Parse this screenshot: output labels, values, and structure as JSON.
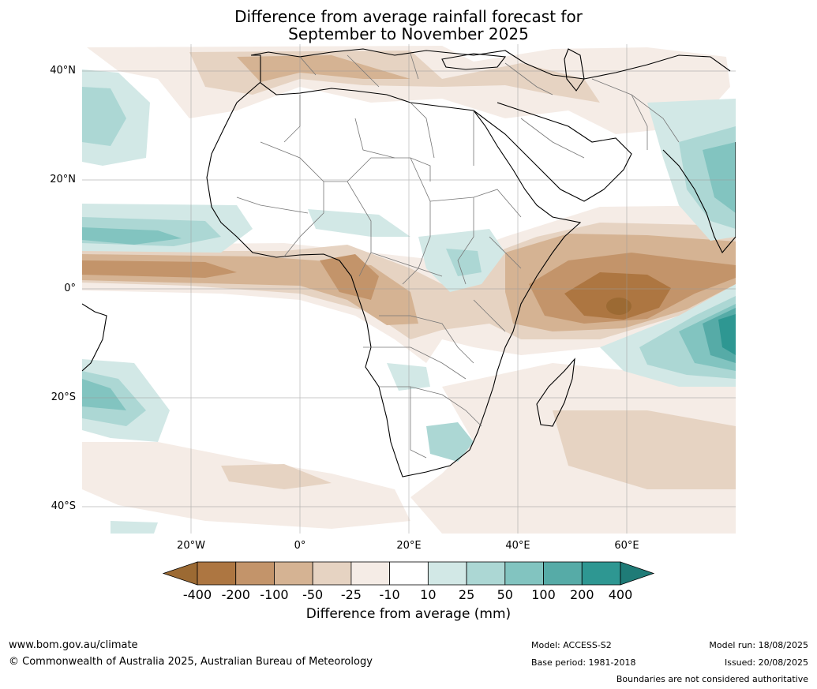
{
  "title_line1": "Difference from average rainfall forecast for",
  "title_line2": "September to November 2025",
  "lat_labels": [
    "40°N",
    "20°N",
    "0°",
    "20°S",
    "40°S"
  ],
  "lon_labels": [
    "20°W",
    "0°",
    "20°E",
    "40°E",
    "60°E"
  ],
  "colorbar": {
    "ticks": [
      "-400",
      "-200",
      "-100",
      "-50",
      "-25",
      "-10",
      "10",
      "25",
      "50",
      "100",
      "200",
      "400"
    ],
    "colors": [
      "#9c6a33",
      "#ad7641",
      "#c3946a",
      "#d5b393",
      "#e6d3c2",
      "#f5ece6",
      "#ffffff",
      "#d2e8e6",
      "#acd7d4",
      "#82c4c0",
      "#56aba7",
      "#2e9792",
      "#1f7b77"
    ],
    "label": "Difference from average (mm)"
  },
  "footer": {
    "url": "www.bom.gov.au/climate",
    "copyright": "© Commonwealth of Australia 2025, Australian Bureau of Meteorology",
    "model": "Model: ACCESS-S2",
    "base_period": "Base period: 1981-2018",
    "model_run": "Model run: 18/08/2025",
    "issued": "Issued: 20/08/2025",
    "disclaimer": "Boundaries are not considered authoritative"
  }
}
